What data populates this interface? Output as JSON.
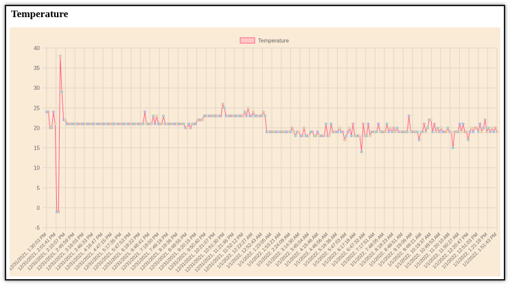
{
  "page": {
    "title": "Temperature"
  },
  "colors": {
    "panel_background": "#faebd7",
    "line": "#ff6384",
    "legend_fill": "#ffc8c8",
    "grid": "#e0d6c6",
    "text": "#666666"
  },
  "chart_data": {
    "type": "line",
    "title": "",
    "xlabel": "",
    "ylabel": "",
    "ylim": [
      -5,
      40
    ],
    "y_ticks": [
      -5,
      0,
      5,
      10,
      15,
      20,
      25,
      30,
      35,
      40
    ],
    "grid": true,
    "legend_position": "top",
    "series": [
      {
        "name": "Temperature",
        "color": "#ff6384",
        "values": [
          24,
          24,
          20,
          20,
          24,
          21,
          -1,
          -1,
          38,
          29,
          22,
          22,
          21,
          21,
          21,
          21,
          21,
          21,
          21,
          21,
          21,
          21,
          21,
          21,
          21,
          21,
          21,
          21,
          21,
          21,
          21,
          21,
          21,
          21,
          21,
          21,
          21,
          21,
          21,
          21,
          21,
          21,
          21,
          21,
          21,
          21,
          21,
          21,
          21,
          21,
          21,
          21,
          21,
          21,
          21,
          21,
          21,
          21,
          24,
          21,
          21,
          21,
          21,
          23,
          21,
          23,
          21,
          21,
          21,
          23,
          21,
          21,
          21,
          21,
          21,
          21,
          21,
          21,
          21,
          21,
          21,
          21,
          20,
          20,
          21,
          20,
          21,
          21,
          21,
          22,
          22,
          22,
          22,
          23,
          23,
          23,
          23,
          23,
          23,
          23,
          23,
          23,
          23,
          23,
          26,
          25,
          23,
          23,
          23,
          23,
          23,
          23,
          23,
          23,
          23,
          23,
          23,
          24,
          23,
          25,
          23,
          23,
          24,
          23,
          23,
          23,
          23,
          23,
          24,
          23,
          19,
          19,
          19,
          19,
          19,
          19,
          19,
          19,
          19,
          19,
          19,
          19,
          19,
          19,
          19,
          20,
          19,
          18,
          19,
          19,
          18,
          18,
          20,
          18,
          18,
          18,
          19,
          19,
          18,
          18,
          19,
          18,
          18,
          18,
          18,
          21,
          18,
          18,
          21,
          19,
          19,
          19,
          19,
          20,
          19,
          19,
          17,
          18,
          19,
          20,
          18,
          21,
          18,
          18,
          18,
          18,
          14,
          21,
          18,
          18,
          21,
          18,
          19,
          19,
          19,
          19,
          21,
          19,
          19,
          19,
          19,
          21,
          19,
          20,
          19,
          20,
          19,
          20,
          19,
          19,
          19,
          19,
          19,
          19,
          23,
          19,
          19,
          19,
          19,
          19,
          17,
          19,
          19,
          21,
          19,
          20,
          22,
          22,
          19,
          21,
          19,
          20,
          19,
          20,
          19,
          19,
          19,
          20,
          19,
          19,
          15,
          19,
          19,
          19,
          21,
          19,
          21,
          19,
          19,
          17,
          19,
          20,
          19,
          20,
          20,
          19,
          21,
          19,
          20,
          22,
          19,
          20,
          19,
          20,
          19,
          20,
          19
        ]
      }
    ],
    "x_tick_labels": [
      "12/31/2021, 1:30:03 PM",
      "12/31/2021, 2:01:41 PM",
      "12/31/2021, 2:15:07 PM",
      "12/31/2021, 2:45:59 PM",
      "12/31/2021, 3:16:03 PM",
      "12/31/2021, 3:46:33 PM",
      "12/31/2021, 4:16:47 PM",
      "12/31/2021, 4:47:15 PM",
      "12/31/2021, 5:17:35 PM",
      "12/31/2021, 5:47:53 PM",
      "12/31/2021, 6:18:22 PM",
      "12/31/2021, 6:48:41 PM",
      "12/31/2021, 7:19:00 PM",
      "12/31/2021, 7:49:18 PM",
      "12/31/2021, 8:19:36 PM",
      "12/31/2021, 8:49:55 PM",
      "12/31/2021, 9:20:15 PM",
      "12/31/2021, 9:50:40 PM",
      "12/31/2021, 10:21:07 PM",
      "12/31/2021, 10:51:30 PM",
      "12/31/2021, 11:21:46 PM",
      "12/31/2021, 11:52:12 PM",
      "1/1/2022, 12:22:27 AM",
      "1/1/2022, 12:52:43 AM",
      "1/1/2022, 1:23:05 AM",
      "1/1/2022, 1:53:21 AM",
      "1/1/2022, 2:24:09 AM",
      "1/1/2022, 3:14:30 AM",
      "1/1/2022, 3:45:04 AM",
      "1/1/2022, 4:15:46 AM",
      "1/1/2022, 4:46:06 AM",
      "1/1/2022, 5:16:36 AM",
      "1/1/2022, 5:47:03 AM",
      "1/1/2022, 6:17:18 AM",
      "1/1/2022, 6:47:32 AM",
      "1/1/2022, 7:17:51 AM",
      "1/1/2022, 7:48:05 AM",
      "1/1/2022, 8:18:23 AM",
      "1/1/2022, 8:48:51 AM",
      "1/1/2022, 9:19:06 AM",
      "1/1/2022, 9:49:21 AM",
      "1/1/2022, 10:19:37 AM",
      "1/1/2022, 10:49:53 AM",
      "1/1/2022, 11:20:10 AM",
      "1/1/2022, 11:50:27 AM",
      "1/1/2022, 12:20:47 PM",
      "1/1/2022, 12:51:03 PM",
      "1/1/2022, 1:21:19 PM",
      "1/1/2022, 1:51:43 PM"
    ]
  }
}
